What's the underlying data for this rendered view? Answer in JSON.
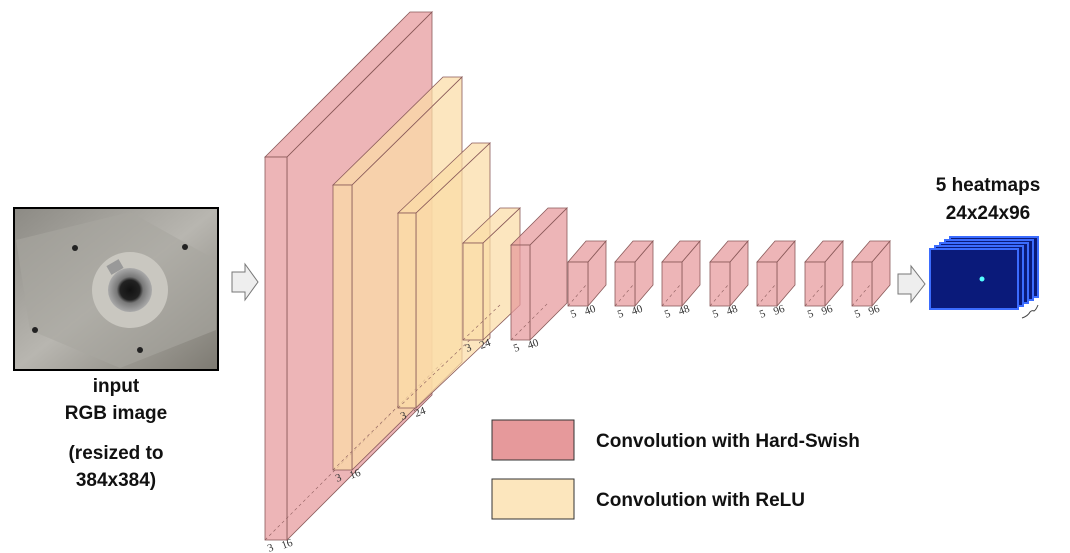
{
  "input": {
    "lines": [
      "input",
      "RGB image"
    ],
    "note": [
      "(resized to",
      "384x384)"
    ]
  },
  "output": {
    "title": [
      "5 heatmaps",
      "24x24x96"
    ]
  },
  "layers": [
    {
      "kernel": "3",
      "channels": "16",
      "color": "#e6999b"
    },
    {
      "kernel": "3",
      "channels": "16",
      "color": "#fbdca6"
    },
    {
      "kernel": "3",
      "channels": "24",
      "color": "#fbdca6"
    },
    {
      "kernel": "3",
      "channels": "24",
      "color": "#fbdca6"
    },
    {
      "kernel": "5",
      "channels": "40",
      "color": "#e6999b"
    },
    {
      "kernel": "5",
      "channels": "40",
      "color": "#e6999b"
    },
    {
      "kernel": "5",
      "channels": "40",
      "color": "#e6999b"
    },
    {
      "kernel": "5",
      "channels": "48",
      "color": "#e6999b"
    },
    {
      "kernel": "5",
      "channels": "48",
      "color": "#e6999b"
    },
    {
      "kernel": "5",
      "channels": "96",
      "color": "#e6999b"
    },
    {
      "kernel": "5",
      "channels": "96",
      "color": "#e6999b"
    },
    {
      "kernel": "5",
      "channels": "96",
      "color": "#e6999b"
    }
  ],
  "legend": [
    {
      "label": "Convolution with Hard-Swish",
      "color": "#e6999b"
    },
    {
      "label": "Convolution with ReLU",
      "color": "#fce6bd"
    }
  ]
}
